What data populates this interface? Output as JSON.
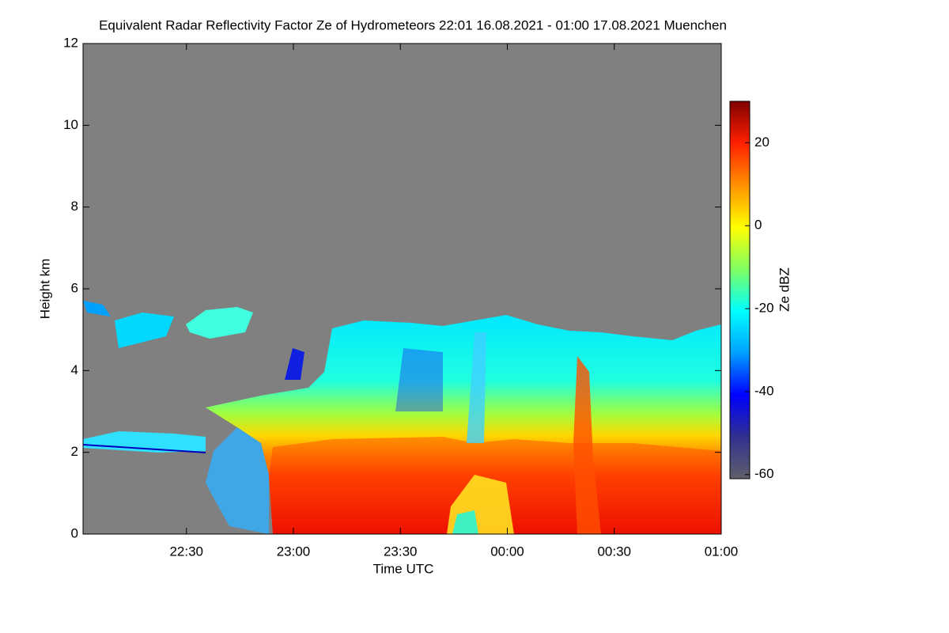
{
  "chart_data": {
    "type": "heatmap",
    "title": "Equivalent Radar Reflectivity Factor Ze of Hydrometeors   22:01 16.08.2021 - 01:00 17.08.2021 Muenchen",
    "x_label": "Time UTC",
    "y_label": "Height km",
    "colorbar_label": "Ze dBZ",
    "xlim": [
      "22:01",
      "01:00"
    ],
    "xticks": [
      "22:30",
      "23:00",
      "23:30",
      "00:00",
      "00:30",
      "01:00"
    ],
    "ylim": [
      0,
      12
    ],
    "yticks": [
      0,
      2,
      4,
      6,
      8,
      10,
      12
    ],
    "zlim": [
      -61,
      30
    ],
    "zticks": [
      -60,
      -40,
      -20,
      0,
      20
    ],
    "colormap": [
      "#60606a",
      "#303090",
      "#0000ff",
      "#00a0ff",
      "#00ffff",
      "#80ff60",
      "#ffff00",
      "#ff9000",
      "#ff2000",
      "#800000"
    ],
    "background_color": "#808080"
  }
}
